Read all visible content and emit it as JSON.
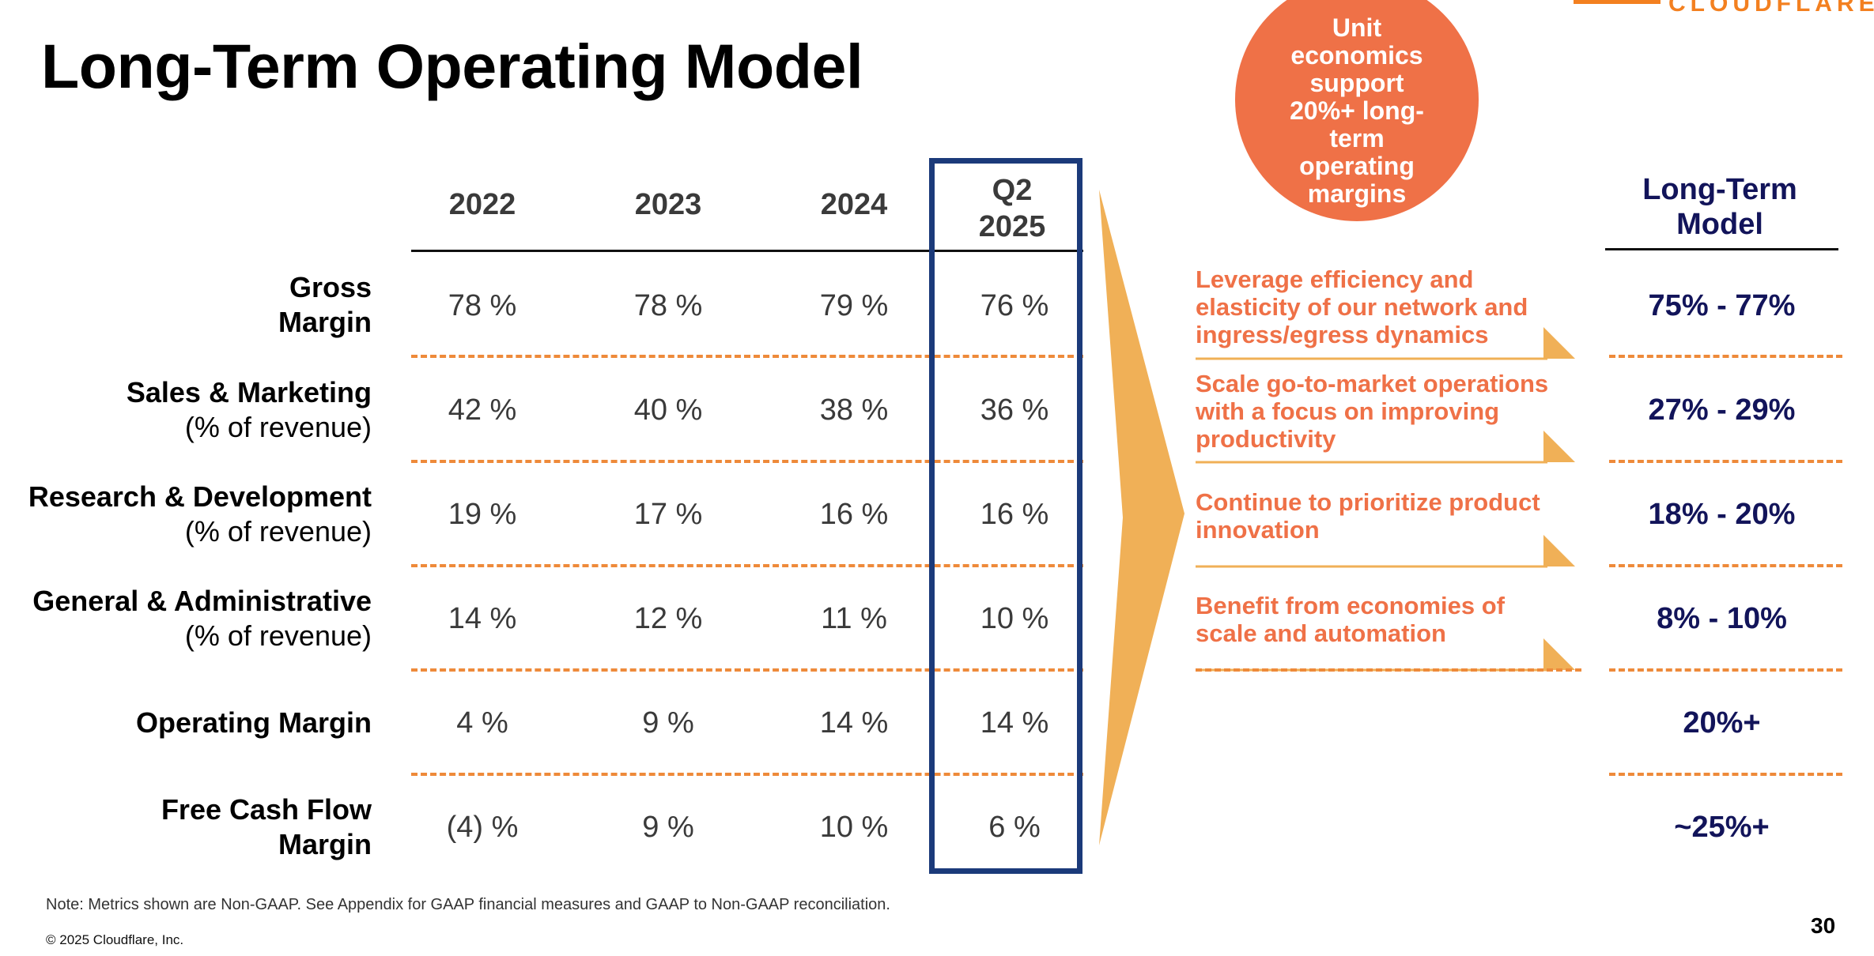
{
  "title": "Long-Term Operating Model",
  "logo_text": "CLOUDFLARE",
  "bubble_text": "Unit economics support 20%+ long-term operating margins",
  "columns": [
    "2022",
    "2023",
    "2024",
    "Q2\n2025"
  ],
  "rows": [
    {
      "label_line1": "Gross",
      "label_line2": "Margin",
      "values": [
        "78 %",
        "78 %",
        "79 %",
        "76 %"
      ],
      "driver": "Leverage efficiency and elasticity of our network and ingress/egress dynamics",
      "target": "75% - 77%"
    },
    {
      "label_line1": "Sales & Marketing",
      "label_line2": "(% of revenue)",
      "values": [
        "42 %",
        "40 %",
        "38 %",
        "36 %"
      ],
      "driver": "Scale go-to-market operations with a focus on improving productivity",
      "target": "27% - 29%"
    },
    {
      "label_line1": "Research & Development",
      "label_line2": "(% of revenue)",
      "values": [
        "19 %",
        "17 %",
        "16 %",
        "16 %"
      ],
      "driver": "Continue to prioritize product innovation",
      "target": "18% - 20%"
    },
    {
      "label_line1": "General & Administrative",
      "label_line2": "(% of revenue)",
      "values": [
        "14 %",
        "12 %",
        "11 %",
        "10 %"
      ],
      "driver": "Benefit from economies of scale and automation",
      "target": "8% - 10%"
    },
    {
      "label_line1": "Operating Margin",
      "label_line2": "",
      "values": [
        "4 %",
        "9 %",
        "14 %",
        "14 %"
      ],
      "driver": "",
      "target": "20%+"
    },
    {
      "label_line1": "Free Cash Flow",
      "label_line2": "Margin",
      "values": [
        "(4) %",
        "9 %",
        "10 %",
        "6 %"
      ],
      "driver": "",
      "target": "~25%+"
    }
  ],
  "long_term_header": "Long-Term Model",
  "note": "Note: Metrics shown are Non-GAAP. See Appendix for GAAP financial measures and GAAP to Non-GAAP reconciliation.",
  "copyright": "© 2025 Cloudflare, Inc.",
  "page_number": "30",
  "colors": {
    "orange": "#ef7147",
    "chevron": "#f0b057",
    "navy": "#12145a",
    "box": "#1b3a7a",
    "dash": "#ee8a3a"
  }
}
